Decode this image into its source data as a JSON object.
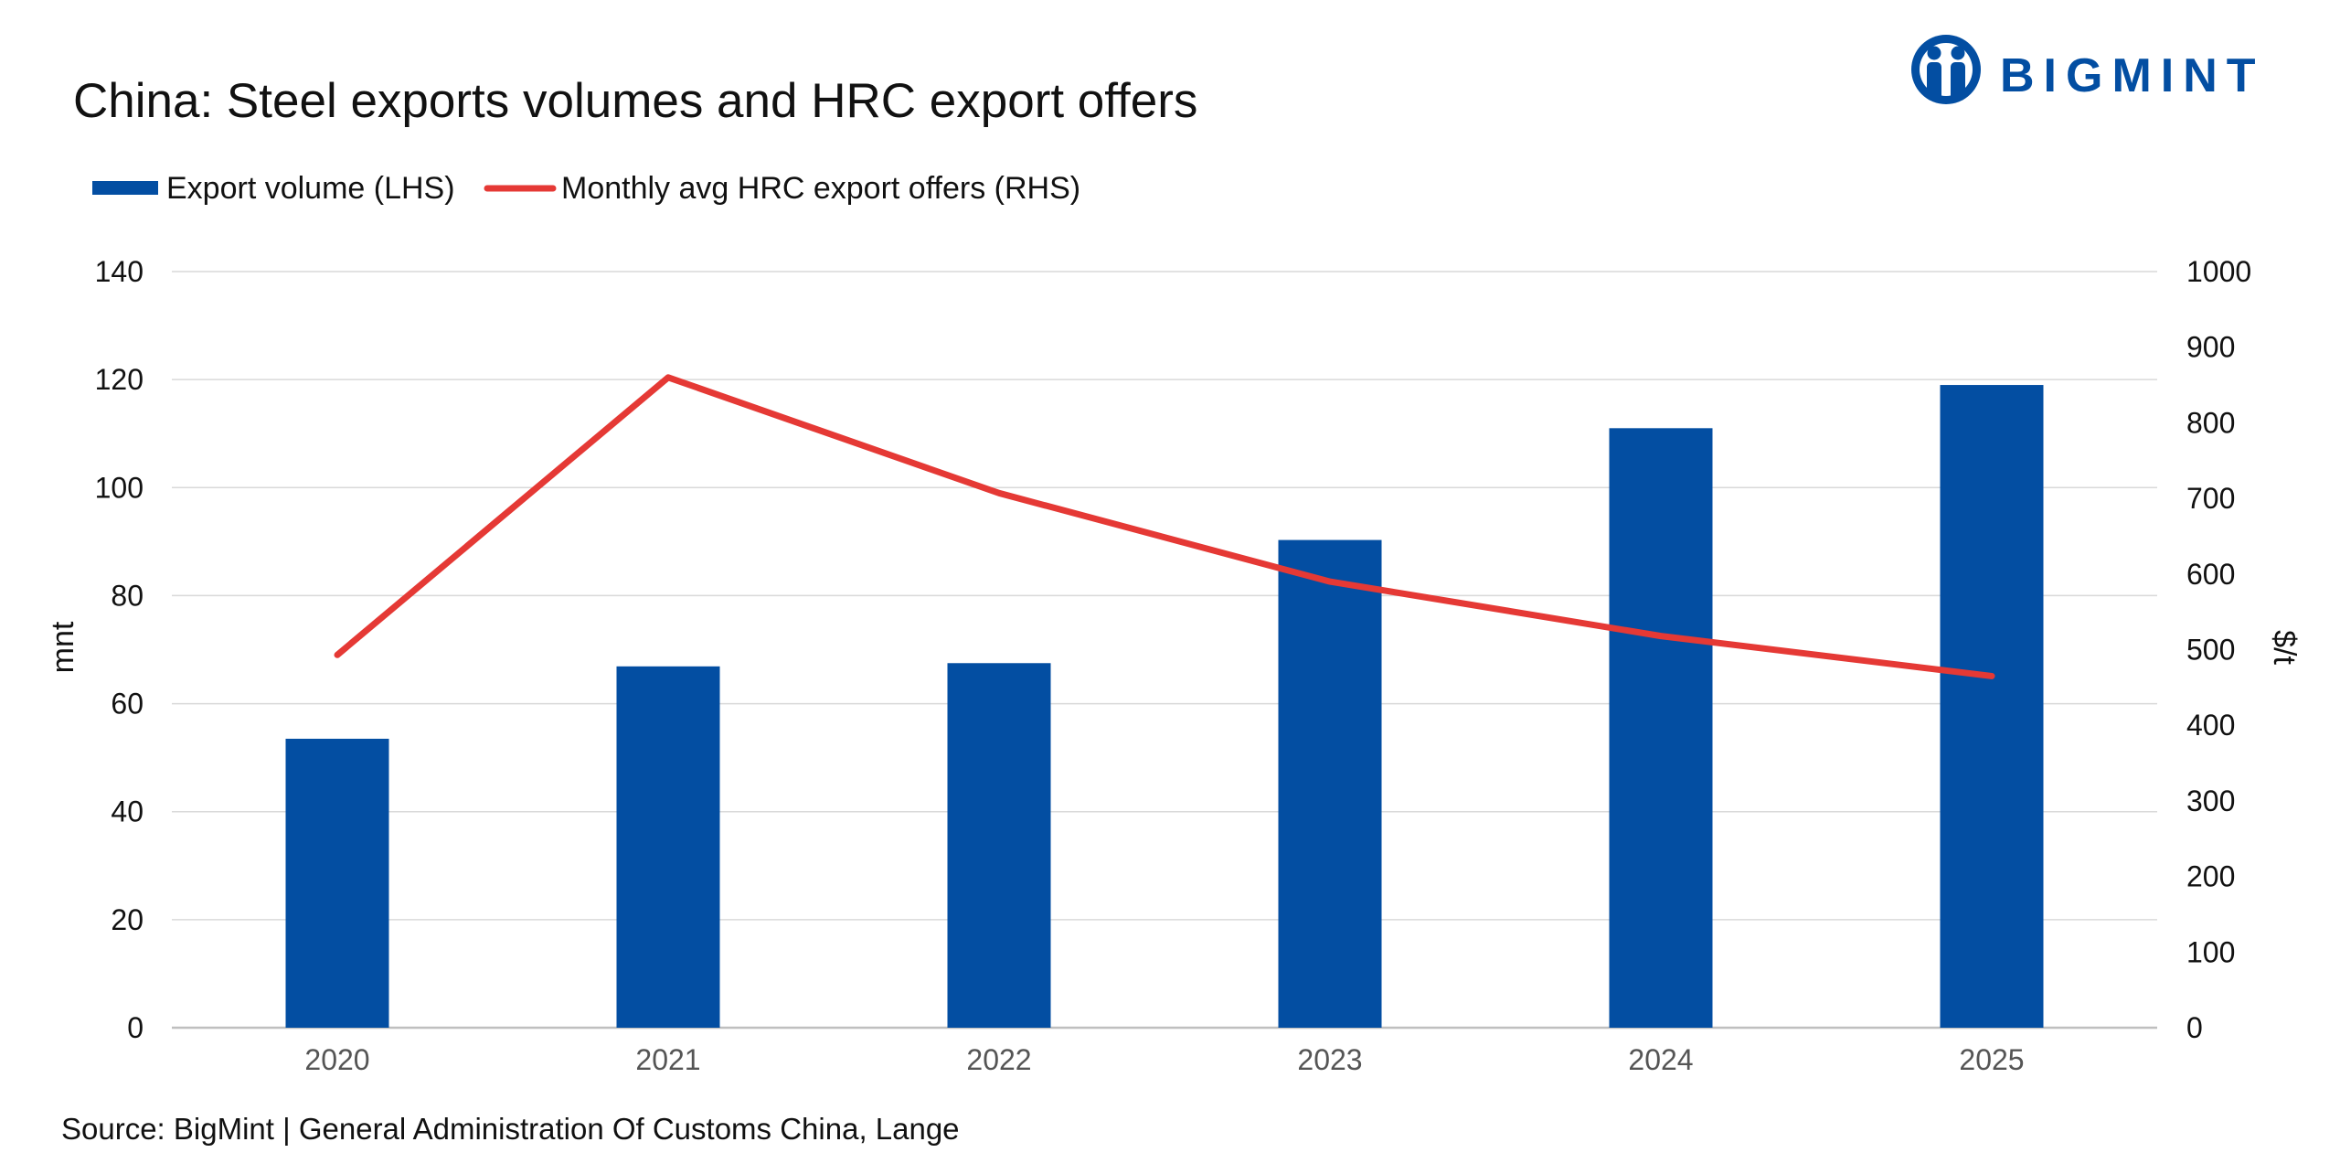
{
  "chart_data": {
    "type": "bar",
    "title": "China: Steel exports volumes and HRC export offers",
    "categories": [
      "2020",
      "2021",
      "2022",
      "2023",
      "2024",
      "2025"
    ],
    "series": [
      {
        "name": "Export volume (LHS)",
        "type": "bar",
        "axis": "left",
        "color": "#034ea2",
        "values": [
          53.5,
          66.9,
          67.5,
          90.3,
          111.0,
          119.0
        ]
      },
      {
        "name": "Monthly avg HRC export offers (RHS)",
        "type": "line",
        "axis": "right",
        "color": "#e53935",
        "values": [
          493,
          860,
          707,
          590,
          518,
          465
        ]
      }
    ],
    "left_axis": {
      "label": "mnt",
      "ylim": [
        0,
        140
      ],
      "ticks": [
        "0",
        "20",
        "40",
        "60",
        "80",
        "100",
        "120",
        "140"
      ]
    },
    "right_axis": {
      "label": "$/t",
      "ylim": [
        0,
        1000
      ],
      "ticks": [
        "0",
        "100",
        "200",
        "300",
        "400",
        "500",
        "600",
        "700",
        "800",
        "900",
        "1000"
      ]
    },
    "grid": true,
    "legend_position": "top-left"
  },
  "source": "Source: BigMint | General Administration Of Customs China, Lange",
  "logo": {
    "text": "BIGMINT",
    "icon": "bigmint-people-logo-icon",
    "color": "#034ea2"
  },
  "colors": {
    "bar": "#034ea2",
    "line": "#e53935",
    "grid": "#d9d9d9"
  }
}
